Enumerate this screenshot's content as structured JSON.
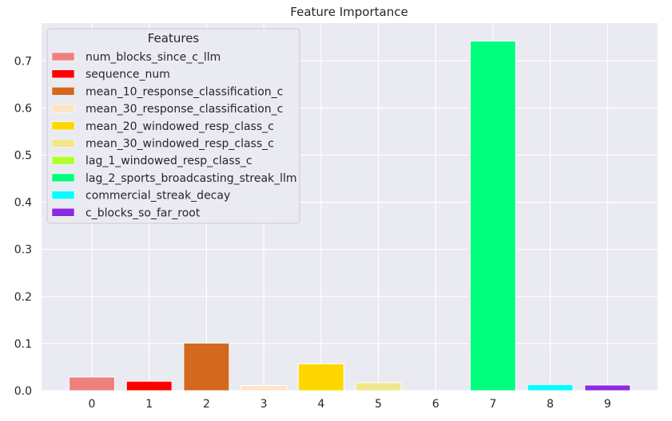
{
  "chart_data": {
    "type": "bar",
    "title": "Feature Importance",
    "xlabel": "",
    "ylabel": "",
    "categories": [
      "0",
      "1",
      "2",
      "3",
      "4",
      "5",
      "6",
      "7",
      "8",
      "9"
    ],
    "values": [
      0.029,
      0.02,
      0.101,
      0.011,
      0.057,
      0.017,
      0.0,
      0.742,
      0.013,
      0.012
    ],
    "colors": [
      "#f08080",
      "#ff0000",
      "#d2691e",
      "#ffe4c4",
      "#ffd700",
      "#f0e68c",
      "#adff2f",
      "#00ff7f",
      "#00ffff",
      "#8a2be2"
    ],
    "ylim": [
      0,
      0.78
    ],
    "yticks": [
      "0.0",
      "0.1",
      "0.2",
      "0.3",
      "0.4",
      "0.5",
      "0.6",
      "0.7"
    ],
    "grid": true,
    "background": "#eaeaf2",
    "legend": {
      "title": "Features",
      "placement": "top-left",
      "entries": [
        "num_blocks_since_c_llm",
        "sequence_num",
        "mean_10_response_classification_c",
        "mean_30_response_classification_c",
        "mean_20_windowed_resp_class_c",
        "mean_30_windowed_resp_class_c",
        "lag_1_windowed_resp_class_c",
        "lag_2_sports_broadcasting_streak_llm",
        "commercial_streak_decay",
        "c_blocks_so_far_root"
      ]
    }
  }
}
